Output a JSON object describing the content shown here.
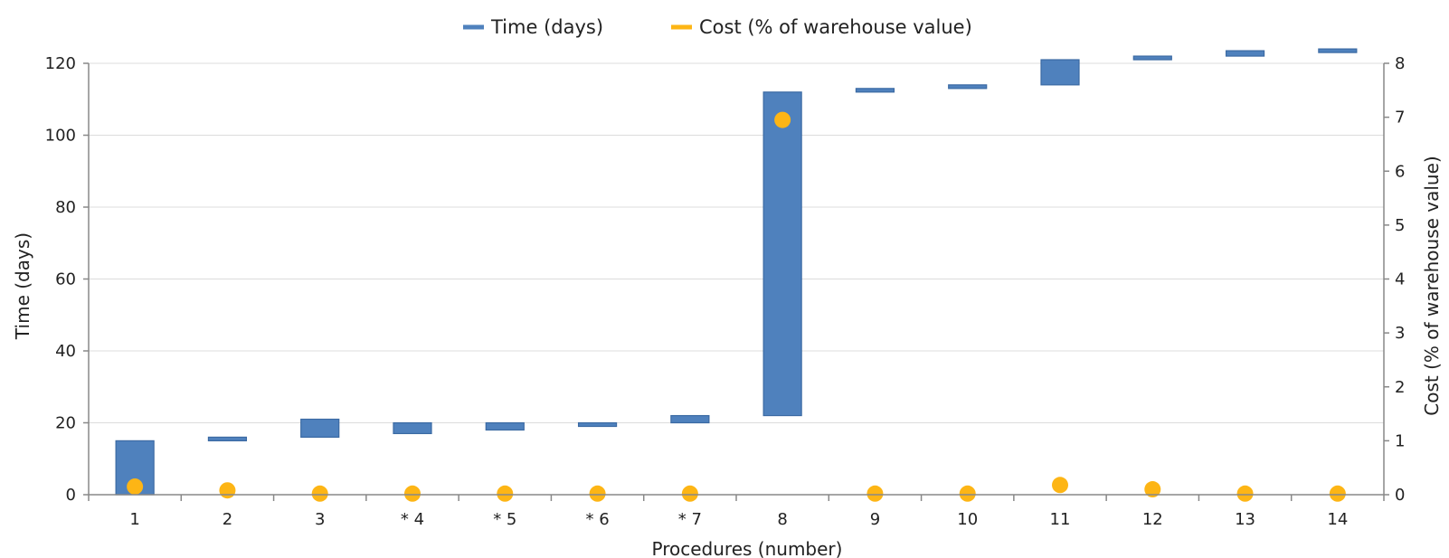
{
  "chart_data": {
    "type": "bar",
    "subtype": "waterfall-with-dual-axis-scatter",
    "xlabel": "Procedures (number)",
    "ylabel_left": "Time (days)",
    "ylabel_right": "Cost (% of warehouse value)",
    "ylim_left": [
      0,
      120
    ],
    "ylim_right": [
      0,
      8
    ],
    "yticks_left": [
      "0",
      "20",
      "40",
      "60",
      "80",
      "100",
      "120"
    ],
    "yticks_right": [
      "0",
      "1",
      "2",
      "3",
      "4",
      "5",
      "6",
      "7",
      "8"
    ],
    "grid": true,
    "legend_position": "top-center",
    "categories": [
      "1",
      "2",
      "3",
      "* 4",
      "* 5",
      "* 6",
      "* 7",
      "8",
      "9",
      "10",
      "11",
      "12",
      "13",
      "14"
    ],
    "series": [
      {
        "name": "Time (days)",
        "color": "#4f81bd",
        "axis": "left",
        "kind": "floating-bar",
        "start": [
          0,
          15,
          16,
          17,
          18,
          19,
          20,
          22,
          112,
          113,
          114,
          121,
          122,
          123
        ],
        "end": [
          15,
          16,
          21,
          20,
          20,
          20,
          22,
          112,
          113,
          114,
          121,
          122,
          123.5,
          124
        ]
      },
      {
        "name": "Cost (% of warehouse value)",
        "color": "#fdb515",
        "axis": "right",
        "kind": "scatter",
        "values": [
          0.15,
          0.08,
          0.02,
          0.02,
          0.02,
          0.02,
          0.02,
          6.95,
          0.02,
          0.02,
          0.18,
          0.1,
          0.02,
          0.02
        ]
      }
    ]
  }
}
